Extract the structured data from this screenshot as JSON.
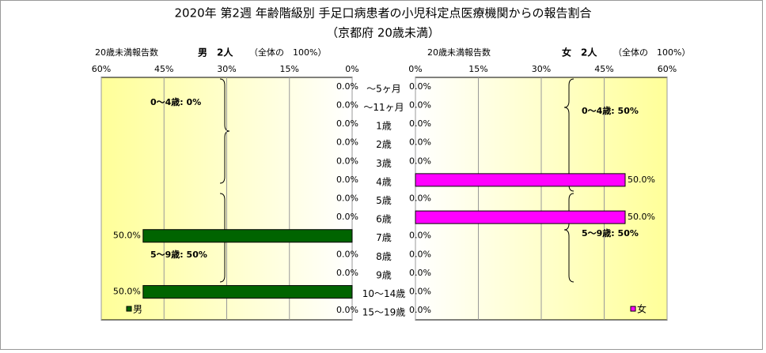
{
  "chart_data": {
    "type": "pyramid",
    "title": "2020年 第2週 年齢階級別 手足口病患者の小児科定点医療機関からの報告割合",
    "subtitle": "（京都府 20歳未満）",
    "categories": [
      "～5ヶ月",
      "～11ヶ月",
      "1歳",
      "2歳",
      "3歳",
      "4歳",
      "5歳",
      "6歳",
      "7歳",
      "8歳",
      "9歳",
      "10～14歳",
      "15～19歳"
    ],
    "xlim": [
      0,
      60
    ],
    "xticks": [
      {
        "value": 0,
        "label": "0%"
      },
      {
        "value": 15,
        "label": "15%"
      },
      {
        "value": 30,
        "label": "30%"
      },
      {
        "value": 45,
        "label": "45%"
      },
      {
        "value": 60,
        "label": "60%"
      }
    ],
    "series": [
      {
        "name": "男",
        "color": "#006400",
        "side": "left",
        "count_label": "20歳未満報告数",
        "count": "男　2人",
        "share": "（全体の　100%）",
        "values": [
          0,
          0,
          0,
          0,
          0,
          0,
          0,
          0,
          50,
          0,
          0,
          50,
          0
        ],
        "value_labels": [
          "0.0%",
          "0.0%",
          "0.0%",
          "0.0%",
          "0.0%",
          "0.0%",
          "0.0%",
          "0.0%",
          "50.0%",
          "0.0%",
          "0.0%",
          "50.0%",
          "0.0%"
        ],
        "annotations": [
          "0～4歳: 0%",
          "5～9歳: 50%"
        ]
      },
      {
        "name": "女",
        "color": "#ff00ff",
        "side": "right",
        "count_label": "20歳未満報告数",
        "count": "女　2人",
        "share": "（全体の　100%）",
        "values": [
          0,
          0,
          0,
          0,
          0,
          50,
          0,
          50,
          0,
          0,
          0,
          0,
          0
        ],
        "value_labels": [
          "0.0%",
          "0.0%",
          "0.0%",
          "0.0%",
          "0.0%",
          "50.0%",
          "0.0%",
          "50.0%",
          "0.0%",
          "0.0%",
          "0.0%",
          "0.0%",
          "0.0%"
        ],
        "annotations": [
          "0～4歳: 50%",
          "5～9歳: 50%"
        ]
      }
    ]
  }
}
